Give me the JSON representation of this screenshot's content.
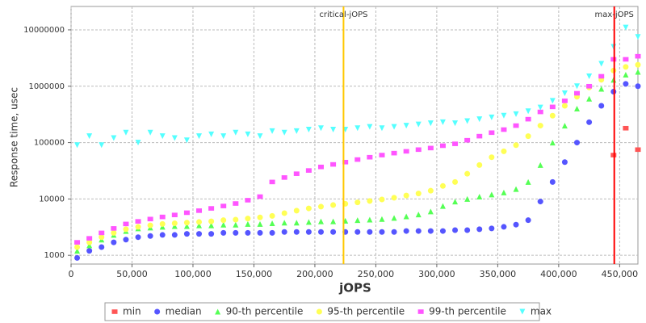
{
  "chart_data": {
    "type": "scatter",
    "xlabel": "jOPS",
    "ylabel": "Response time, usec",
    "log_y": true,
    "grid": true,
    "xlim": [
      0,
      465000
    ],
    "ylim": [
      700,
      26000000
    ],
    "xticks": [
      0,
      {
        "value": 50000,
        "label": "50,000"
      },
      {
        "value": 100000,
        "label": "100,000"
      },
      {
        "value": 150000,
        "label": "150,000"
      },
      {
        "value": 200000,
        "label": "200,000"
      },
      {
        "value": 250000,
        "label": "250,000"
      },
      {
        "value": 300000,
        "label": "300,000"
      },
      {
        "value": 350000,
        "label": "350,000"
      },
      {
        "value": 400000,
        "label": "400,000"
      },
      {
        "value": 450000,
        "label": "450,000"
      }
    ],
    "yticks": [
      1000,
      10000,
      100000,
      1000000,
      10000000
    ],
    "markers": [
      {
        "label": "critical-jOPS",
        "value": 223500,
        "color": "#ffc800"
      },
      {
        "label": "max-jOPS",
        "value": 445600,
        "color": "#ff0000"
      }
    ],
    "legend": "bottom",
    "x": [
      5000,
      15000,
      25000,
      35000,
      45000,
      55000,
      65000,
      75000,
      85000,
      95000,
      105000,
      115000,
      125000,
      135000,
      145000,
      155000,
      165000,
      175000,
      185000,
      195000,
      205000,
      215000,
      225000,
      235000,
      245000,
      255000,
      265000,
      275000,
      285000,
      295000,
      305000,
      315000,
      325000,
      335000,
      345000,
      355000,
      365000,
      375000,
      385000,
      395000,
      405000,
      415000,
      425000,
      435000,
      445000,
      455000,
      465000
    ],
    "series": [
      {
        "name": "min",
        "color": "#ff5555",
        "marker": "square",
        "values": [
          null,
          null,
          null,
          null,
          null,
          null,
          null,
          null,
          null,
          null,
          null,
          null,
          null,
          null,
          null,
          null,
          null,
          null,
          null,
          null,
          null,
          null,
          null,
          null,
          null,
          null,
          null,
          null,
          null,
          null,
          null,
          null,
          null,
          null,
          null,
          null,
          null,
          null,
          null,
          null,
          null,
          null,
          null,
          null,
          60000,
          180000,
          75000
        ]
      },
      {
        "name": "median",
        "color": "#5555ff",
        "marker": "circle",
        "values": [
          900,
          1200,
          1400,
          1700,
          1900,
          2100,
          2200,
          2300,
          2300,
          2400,
          2400,
          2400,
          2500,
          2500,
          2500,
          2500,
          2500,
          2600,
          2600,
          2600,
          2600,
          2600,
          2600,
          2600,
          2600,
          2600,
          2600,
          2700,
          2700,
          2700,
          2700,
          2800,
          2800,
          2900,
          3000,
          3200,
          3500,
          4200,
          9000,
          20000,
          45000,
          100000,
          230000,
          450000,
          800000,
          1100000,
          1000000
        ]
      },
      {
        "name": "90-th percentile",
        "color": "#55ff55",
        "marker": "triangle",
        "values": [
          1200,
          1500,
          1900,
          2300,
          2700,
          3000,
          3100,
          3200,
          3300,
          3300,
          3400,
          3400,
          3500,
          3500,
          3600,
          3600,
          3700,
          3800,
          3800,
          3900,
          4000,
          4000,
          4100,
          4200,
          4300,
          4400,
          4600,
          4900,
          5300,
          6000,
          7500,
          9000,
          10000,
          11000,
          12000,
          13000,
          15000,
          20000,
          40000,
          100000,
          200000,
          400000,
          600000,
          900000,
          1300000,
          1600000,
          1800000
        ]
      },
      {
        "name": "95-th percentile",
        "color": "#ffff55",
        "marker": "circle",
        "values": [
          1400,
          1700,
          2100,
          2500,
          2900,
          3200,
          3400,
          3600,
          3700,
          3800,
          3900,
          4000,
          4200,
          4300,
          4500,
          4700,
          5000,
          5600,
          6200,
          6800,
          7300,
          7800,
          8200,
          8700,
          9200,
          9800,
          10500,
          11500,
          12500,
          14000,
          17000,
          20000,
          28000,
          40000,
          55000,
          70000,
          90000,
          130000,
          200000,
          300000,
          450000,
          650000,
          950000,
          1300000,
          1900000,
          2200000,
          2400000
        ]
      },
      {
        "name": "99-th percentile",
        "color": "#ff55ff",
        "marker": "square",
        "values": [
          1700,
          2000,
          2500,
          3000,
          3600,
          4000,
          4400,
          4800,
          5200,
          5700,
          6200,
          6800,
          7500,
          8300,
          9500,
          11000,
          20000,
          24000,
          28000,
          32000,
          37000,
          41000,
          45000,
          50000,
          55000,
          60000,
          65000,
          70000,
          75000,
          80000,
          88000,
          95000,
          110000,
          130000,
          150000,
          170000,
          200000,
          260000,
          350000,
          430000,
          550000,
          750000,
          1000000,
          1500000,
          3000000,
          3000000,
          3400000
        ]
      },
      {
        "name": "max",
        "color": "#55ffff",
        "marker": "down-triangle",
        "values": [
          90000,
          130000,
          90000,
          120000,
          150000,
          100000,
          150000,
          130000,
          120000,
          110000,
          130000,
          140000,
          130000,
          150000,
          140000,
          130000,
          160000,
          150000,
          160000,
          170000,
          180000,
          170000,
          170000,
          180000,
          190000,
          180000,
          190000,
          200000,
          210000,
          220000,
          230000,
          220000,
          240000,
          260000,
          280000,
          300000,
          320000,
          360000,
          420000,
          550000,
          750000,
          1000000,
          1500000,
          2500000,
          5000000,
          11000000,
          7500000
        ]
      }
    ]
  }
}
